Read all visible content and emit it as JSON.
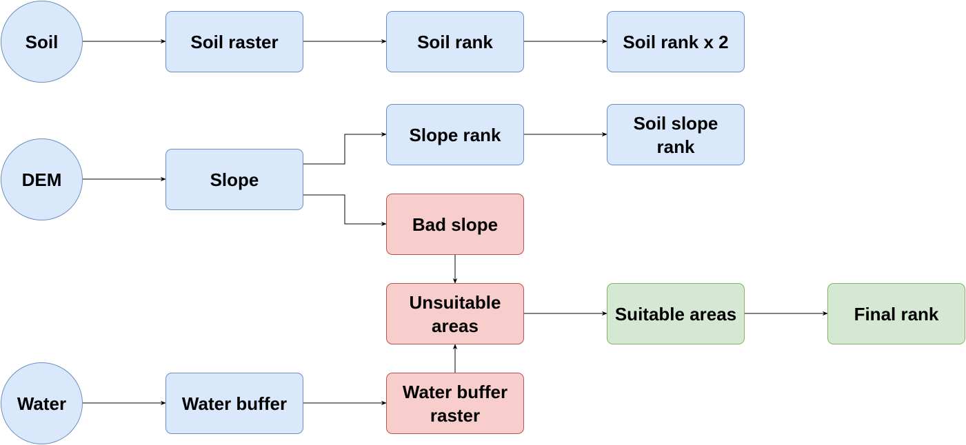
{
  "diagram": {
    "colors": {
      "blue_fill": "#dae8fc",
      "blue_stroke": "#6c8ebf",
      "red_fill": "#f8cecc",
      "red_stroke": "#b85450",
      "green_fill": "#d5e8d4",
      "green_stroke": "#82b366",
      "edge": "#000000"
    },
    "nodes": {
      "soil": "Soil",
      "dem": "DEM",
      "water": "Water",
      "soil_raster": "Soil raster",
      "slope": "Slope",
      "water_buffer": "Water buffer",
      "soil_rank": "Soil rank",
      "slope_rank": "Slope rank",
      "bad_slope": "Bad slope",
      "unsuitable_areas": "Unsuitable areas",
      "water_buffer_raster": "Water buffer raster",
      "soil_rank_x2": "Soil rank x 2",
      "soil_slope_rank": "Soil slope rank",
      "suitable_areas": "Suitable areas",
      "final_rank": "Final rank"
    },
    "edges": [
      {
        "from": "soil",
        "to": "soil_raster"
      },
      {
        "from": "soil_raster",
        "to": "soil_rank"
      },
      {
        "from": "soil_rank",
        "to": "soil_rank_x2"
      },
      {
        "from": "dem",
        "to": "slope"
      },
      {
        "from": "slope",
        "to": "slope_rank"
      },
      {
        "from": "slope",
        "to": "bad_slope"
      },
      {
        "from": "slope_rank",
        "to": "soil_slope_rank"
      },
      {
        "from": "bad_slope",
        "to": "unsuitable_areas"
      },
      {
        "from": "water",
        "to": "water_buffer"
      },
      {
        "from": "water_buffer",
        "to": "water_buffer_raster"
      },
      {
        "from": "water_buffer_raster",
        "to": "unsuitable_areas"
      },
      {
        "from": "unsuitable_areas",
        "to": "suitable_areas"
      },
      {
        "from": "suitable_areas",
        "to": "final_rank"
      }
    ]
  }
}
